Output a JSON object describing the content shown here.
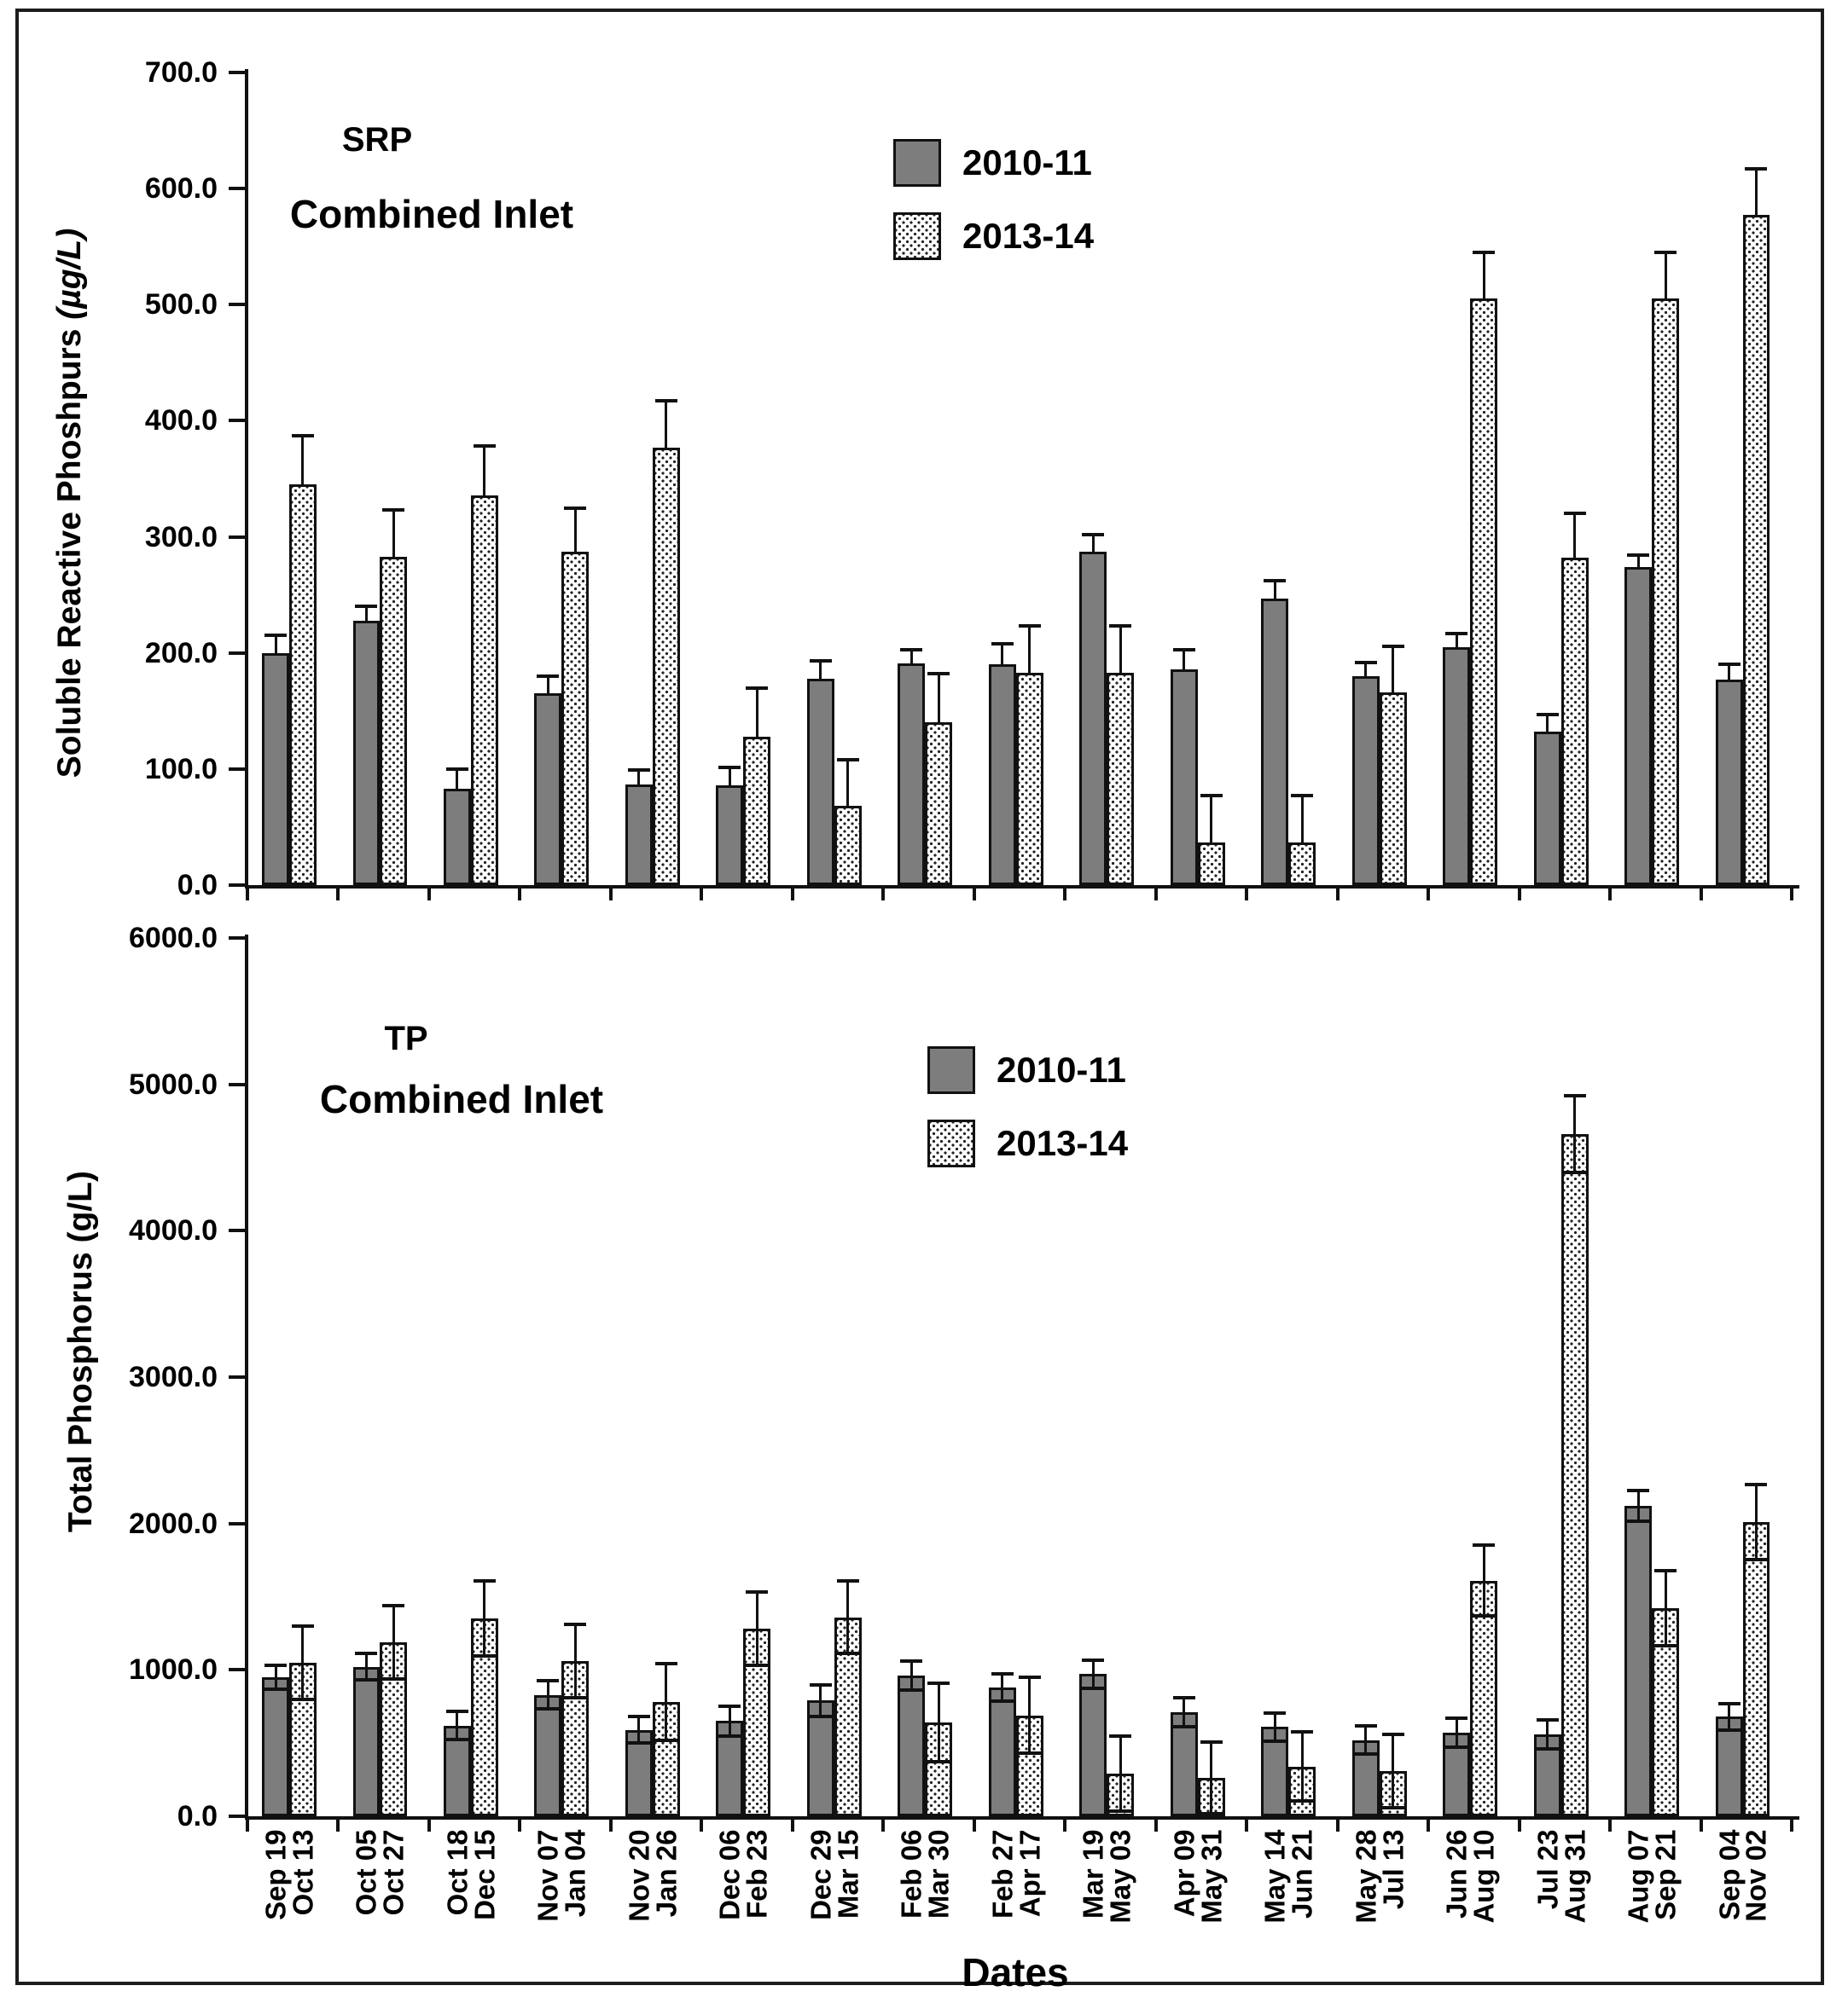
{
  "figure_colors": {
    "bar_solid": "#7d7d7d",
    "bar_dotted_bg": "#ffffff",
    "outline": "#111111",
    "text": "#000000"
  },
  "x_axis_title": "Dates",
  "chart_data": [
    {
      "type": "bar",
      "panel": "SRP",
      "subtitle": "Combined Inlet",
      "ylabel": "Soluble Reactive Phoshpurs",
      "ylabel_unit": "(µg/L)",
      "ylim": [
        0,
        700
      ],
      "yticks": [
        "0.0",
        "100.0",
        "200.0",
        "300.0",
        "400.0",
        "500.0",
        "600.0",
        "700.0"
      ],
      "grid": false,
      "legend_position": "top-center-right",
      "error_direction": "up",
      "categories": [
        [
          "Sep 19",
          "Oct 13"
        ],
        [
          "Oct 05",
          "Oct 27"
        ],
        [
          "Oct 18",
          "Dec 15"
        ],
        [
          "Nov 07",
          "Jan 04"
        ],
        [
          "Nov 20",
          "Jan 26"
        ],
        [
          "Dec 06",
          "Feb 23"
        ],
        [
          "Dec 29",
          "Mar 15"
        ],
        [
          "Feb 06",
          "Mar 30"
        ],
        [
          "Feb 27",
          "Apr 17"
        ],
        [
          "Mar 19",
          "May 03"
        ],
        [
          "Apr 09",
          "May 31"
        ],
        [
          "May 14",
          "Jun 21"
        ],
        [
          "May 28",
          "Jul 13"
        ],
        [
          "Jun 26",
          "Aug 10"
        ],
        [
          "Jul 23",
          "Aug 31"
        ],
        [
          "Aug 07",
          "Sep 21"
        ],
        [
          "Sep 04",
          "Nov 02"
        ]
      ],
      "series": [
        {
          "name": "2010-11",
          "pattern": "solid",
          "values": [
            200,
            228,
            83,
            165,
            87,
            86,
            178,
            191,
            190,
            287,
            186,
            247,
            180,
            205,
            132,
            274,
            177
          ],
          "errors": [
            15,
            12,
            17,
            15,
            12,
            15,
            15,
            12,
            18,
            15,
            17,
            15,
            12,
            12,
            15,
            10,
            13
          ]
        },
        {
          "name": "2013-14",
          "pattern": "dotted",
          "values": [
            345,
            283,
            336,
            287,
            377,
            128,
            68,
            140,
            183,
            183,
            37,
            37,
            166,
            505,
            282,
            505,
            577
          ],
          "errors": [
            42,
            40,
            42,
            38,
            40,
            42,
            40,
            42,
            40,
            40,
            40,
            40,
            40,
            40,
            38,
            40,
            40
          ]
        }
      ]
    },
    {
      "type": "bar",
      "panel": "TP",
      "subtitle": "Combined Inlet",
      "ylabel": "Total Phosphorus",
      "ylabel_unit": "(g/L)",
      "ylim": [
        0,
        6000
      ],
      "yticks": [
        "0.0",
        "1000.0",
        "2000.0",
        "3000.0",
        "4000.0",
        "5000.0",
        "6000.0"
      ],
      "grid": false,
      "legend_position": "top-center-right",
      "error_direction": "both",
      "categories": [
        [
          "Sep 19",
          "Oct 13"
        ],
        [
          "Oct 05",
          "Oct 27"
        ],
        [
          "Oct 18",
          "Dec 15"
        ],
        [
          "Nov 07",
          "Jan 04"
        ],
        [
          "Nov 20",
          "Jan 26"
        ],
        [
          "Dec 06",
          "Feb 23"
        ],
        [
          "Dec 29",
          "Mar 15"
        ],
        [
          "Feb 06",
          "Mar 30"
        ],
        [
          "Feb 27",
          "Apr 17"
        ],
        [
          "Mar 19",
          "May 03"
        ],
        [
          "Apr 09",
          "May 31"
        ],
        [
          "May 14",
          "Jun 21"
        ],
        [
          "May 28",
          "Jul 13"
        ],
        [
          "Jun 26",
          "Aug 10"
        ],
        [
          "Jul 23",
          "Aug 31"
        ],
        [
          "Aug 07",
          "Sep 21"
        ],
        [
          "Sep 04",
          "Nov 02"
        ]
      ],
      "series": [
        {
          "name": "2010-11",
          "pattern": "solid",
          "values": [
            950,
            1020,
            620,
            830,
            590,
            650,
            790,
            960,
            880,
            970,
            710,
            610,
            520,
            570,
            560,
            2120,
            680
          ],
          "errors": [
            80,
            90,
            95,
            95,
            90,
            100,
            110,
            100,
            95,
            95,
            100,
            95,
            95,
            100,
            100,
            105,
            90
          ]
        },
        {
          "name": "2013-14",
          "pattern": "dotted",
          "values": [
            1050,
            1190,
            1350,
            1060,
            780,
            1280,
            1360,
            640,
            690,
            290,
            260,
            340,
            310,
            1610,
            4660,
            1420,
            2010
          ],
          "errors": [
            250,
            250,
            255,
            250,
            260,
            250,
            250,
            270,
            260,
            255,
            245,
            235,
            250,
            240,
            260,
            255,
            255
          ]
        }
      ]
    }
  ]
}
